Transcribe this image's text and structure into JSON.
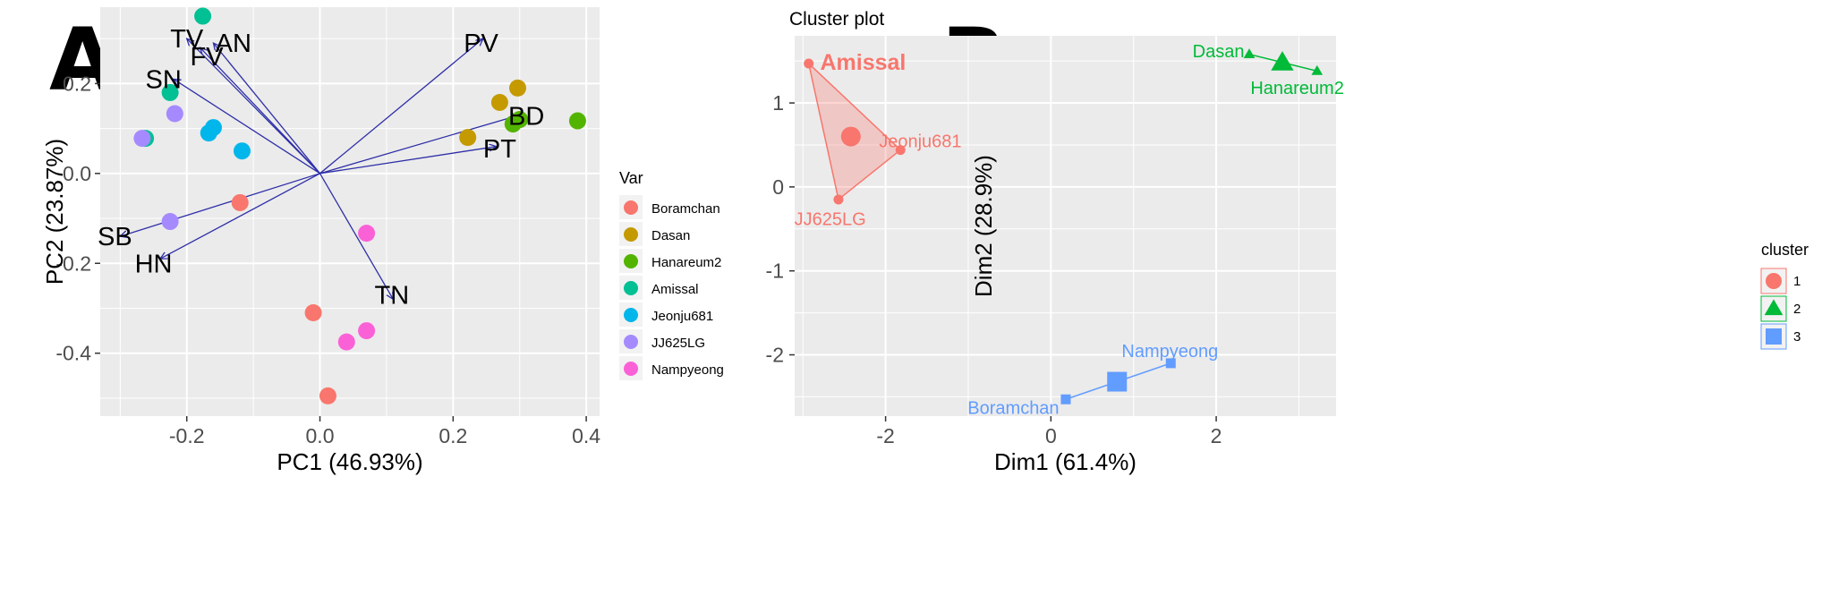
{
  "panels": {
    "a_letter": "A",
    "b_letter": "B"
  },
  "colors": {
    "panel_bg": "#ebebeb",
    "grid": "#ffffff",
    "arrow": "#2e2ea8",
    "cluster1": "#f8766d",
    "cluster2": "#00ba38",
    "cluster3": "#619cff"
  },
  "chart_data": [
    {
      "type": "scatter",
      "title": "",
      "xlabel": "PC1 (46.93%)",
      "ylabel": "PC2 (23.87%)",
      "xlim": [
        -0.33,
        0.42
      ],
      "ylim": [
        -0.54,
        0.37
      ],
      "xticks": [
        -0.2,
        0.0,
        0.2,
        0.4
      ],
      "xtick_labels": [
        "-0.2",
        "0.0",
        "0.2",
        "0.4"
      ],
      "yticks": [
        -0.4,
        -0.2,
        0.0,
        0.2
      ],
      "ytick_labels": [
        "-0.4",
        "-0.2",
        "0.0",
        "0.2"
      ],
      "grid": true,
      "legend": {
        "title": "Var",
        "placement": "right",
        "entries": [
          "Boramchan",
          "Dasan",
          "Hanareum2",
          "Amissal",
          "Jeonju681",
          "JJ625LG",
          "Nampyeong"
        ],
        "colors": [
          "#f8766d",
          "#c49a00",
          "#53b400",
          "#00c094",
          "#00b6eb",
          "#a58aff",
          "#fb61d7"
        ]
      },
      "series": [
        {
          "name": "Boramchan",
          "color": "#f8766d",
          "points": [
            [
              -0.12,
              -0.065
            ],
            [
              -0.01,
              -0.31
            ],
            [
              0.012,
              -0.495
            ]
          ]
        },
        {
          "name": "Dasan",
          "color": "#c49a00",
          "points": [
            [
              0.297,
              0.19
            ],
            [
              0.27,
              0.158
            ],
            [
              0.222,
              0.08
            ]
          ]
        },
        {
          "name": "Hanareum2",
          "color": "#53b400",
          "points": [
            [
              0.387,
              0.117
            ],
            [
              0.29,
              0.11
            ],
            [
              0.3,
              0.12
            ]
          ]
        },
        {
          "name": "Amissal",
          "color": "#00c094",
          "points": [
            [
              -0.176,
              0.35
            ],
            [
              -0.225,
              0.18
            ],
            [
              -0.262,
              0.078
            ]
          ]
        },
        {
          "name": "Jeonju681",
          "color": "#00b6eb",
          "points": [
            [
              -0.167,
              0.09
            ],
            [
              -0.16,
              0.102
            ],
            [
              -0.117,
              0.05
            ]
          ]
        },
        {
          "name": "JJ625LG",
          "color": "#a58aff",
          "points": [
            [
              -0.267,
              0.078
            ],
            [
              -0.218,
              0.133
            ],
            [
              -0.225,
              -0.107
            ]
          ]
        },
        {
          "name": "Nampyeong",
          "color": "#fb61d7",
          "points": [
            [
              0.07,
              -0.133
            ],
            [
              0.07,
              -0.35
            ],
            [
              0.04,
              -0.375
            ]
          ]
        }
      ],
      "loadings": [
        {
          "label": "TV",
          "x": -0.2,
          "y": 0.3,
          "lx": -0.2,
          "ly": 0.3
        },
        {
          "label": "FV",
          "x": -0.18,
          "y": 0.28,
          "lx": -0.17,
          "ly": 0.26
        },
        {
          "label": "AN",
          "x": -0.16,
          "y": 0.29,
          "lx": -0.13,
          "ly": 0.29
        },
        {
          "label": "SN",
          "x": -0.22,
          "y": 0.21,
          "lx": -0.235,
          "ly": 0.21
        },
        {
          "label": "PV",
          "x": 0.245,
          "y": 0.3,
          "lx": 0.242,
          "ly": 0.29
        },
        {
          "label": "BD",
          "x": 0.3,
          "y": 0.13,
          "lx": 0.31,
          "ly": 0.128
        },
        {
          "label": "PT",
          "x": 0.265,
          "y": 0.06,
          "lx": 0.27,
          "ly": 0.055
        },
        {
          "label": "SB",
          "x": -0.3,
          "y": -0.14,
          "lx": -0.308,
          "ly": -0.14
        },
        {
          "label": "HN",
          "x": -0.24,
          "y": -0.19,
          "lx": -0.25,
          "ly": -0.2
        },
        {
          "label": "TN",
          "x": 0.11,
          "y": -0.28,
          "lx": 0.108,
          "ly": -0.27
        }
      ]
    },
    {
      "type": "scatter",
      "title": "Cluster plot",
      "xlabel": "Dim1 (61.4%)",
      "ylabel": "Dim2 (28.9%)",
      "xlim": [
        -3.1,
        3.45
      ],
      "ylim": [
        -2.73,
        1.8
      ],
      "xticks": [
        -2,
        0,
        2
      ],
      "xtick_labels": [
        "-2",
        "0",
        "2"
      ],
      "yticks": [
        -2,
        -1,
        0,
        1
      ],
      "ytick_labels": [
        "-2",
        "-1",
        "0",
        "1"
      ],
      "grid": true,
      "legend": {
        "title": "cluster",
        "placement": "right",
        "entries": [
          "1",
          "2",
          "3"
        ],
        "colors": [
          "#f8766d",
          "#00ba38",
          "#619cff"
        ],
        "shapes": [
          "circle",
          "triangle",
          "square"
        ]
      },
      "clusters": [
        {
          "name": "1",
          "color": "#f8766d",
          "shape": "circle",
          "center": [
            -2.42,
            0.6
          ],
          "hull": [
            [
              -2.93,
              1.47
            ],
            [
              -1.82,
              0.44
            ],
            [
              -2.57,
              -0.15
            ]
          ],
          "points": [
            {
              "label": "Amissal",
              "x": -2.93,
              "y": 1.47,
              "lx": -2.9,
              "ly": 1.47,
              "anchor": "start",
              "big": true
            },
            {
              "label": "Jeonju681",
              "x": -1.82,
              "y": 0.44,
              "lx": -2.08,
              "ly": 0.55,
              "anchor": "start",
              "big": false
            },
            {
              "label": "JJ625LG",
              "x": -2.57,
              "y": -0.15,
              "lx": -2.67,
              "ly": -0.38,
              "anchor": "middle",
              "big": false
            }
          ]
        },
        {
          "name": "2",
          "color": "#00ba38",
          "shape": "triangle",
          "center": [
            2.8,
            1.48
          ],
          "hull": [
            [
              2.4,
              1.58
            ],
            [
              3.22,
              1.38
            ]
          ],
          "points": [
            {
              "label": "Dasan",
              "x": 2.4,
              "y": 1.58,
              "lx": 2.34,
              "ly": 1.62,
              "anchor": "end",
              "big": false
            },
            {
              "label": "Hanareum2",
              "x": 3.22,
              "y": 1.38,
              "lx": 2.98,
              "ly": 1.18,
              "anchor": "middle",
              "big": false
            }
          ]
        },
        {
          "name": "3",
          "color": "#619cff",
          "shape": "square",
          "center": [
            0.8,
            -2.32
          ],
          "hull": [
            [
              0.18,
              -2.53
            ],
            [
              1.45,
              -2.1
            ]
          ],
          "points": [
            {
              "label": "Nampyeong",
              "x": 1.45,
              "y": -2.1,
              "lx": 1.44,
              "ly": -1.95,
              "anchor": "middle",
              "big": false
            },
            {
              "label": "Boramchan",
              "x": 0.18,
              "y": -2.53,
              "lx": 0.1,
              "ly": -2.63,
              "anchor": "end",
              "big": false
            }
          ]
        }
      ]
    }
  ]
}
